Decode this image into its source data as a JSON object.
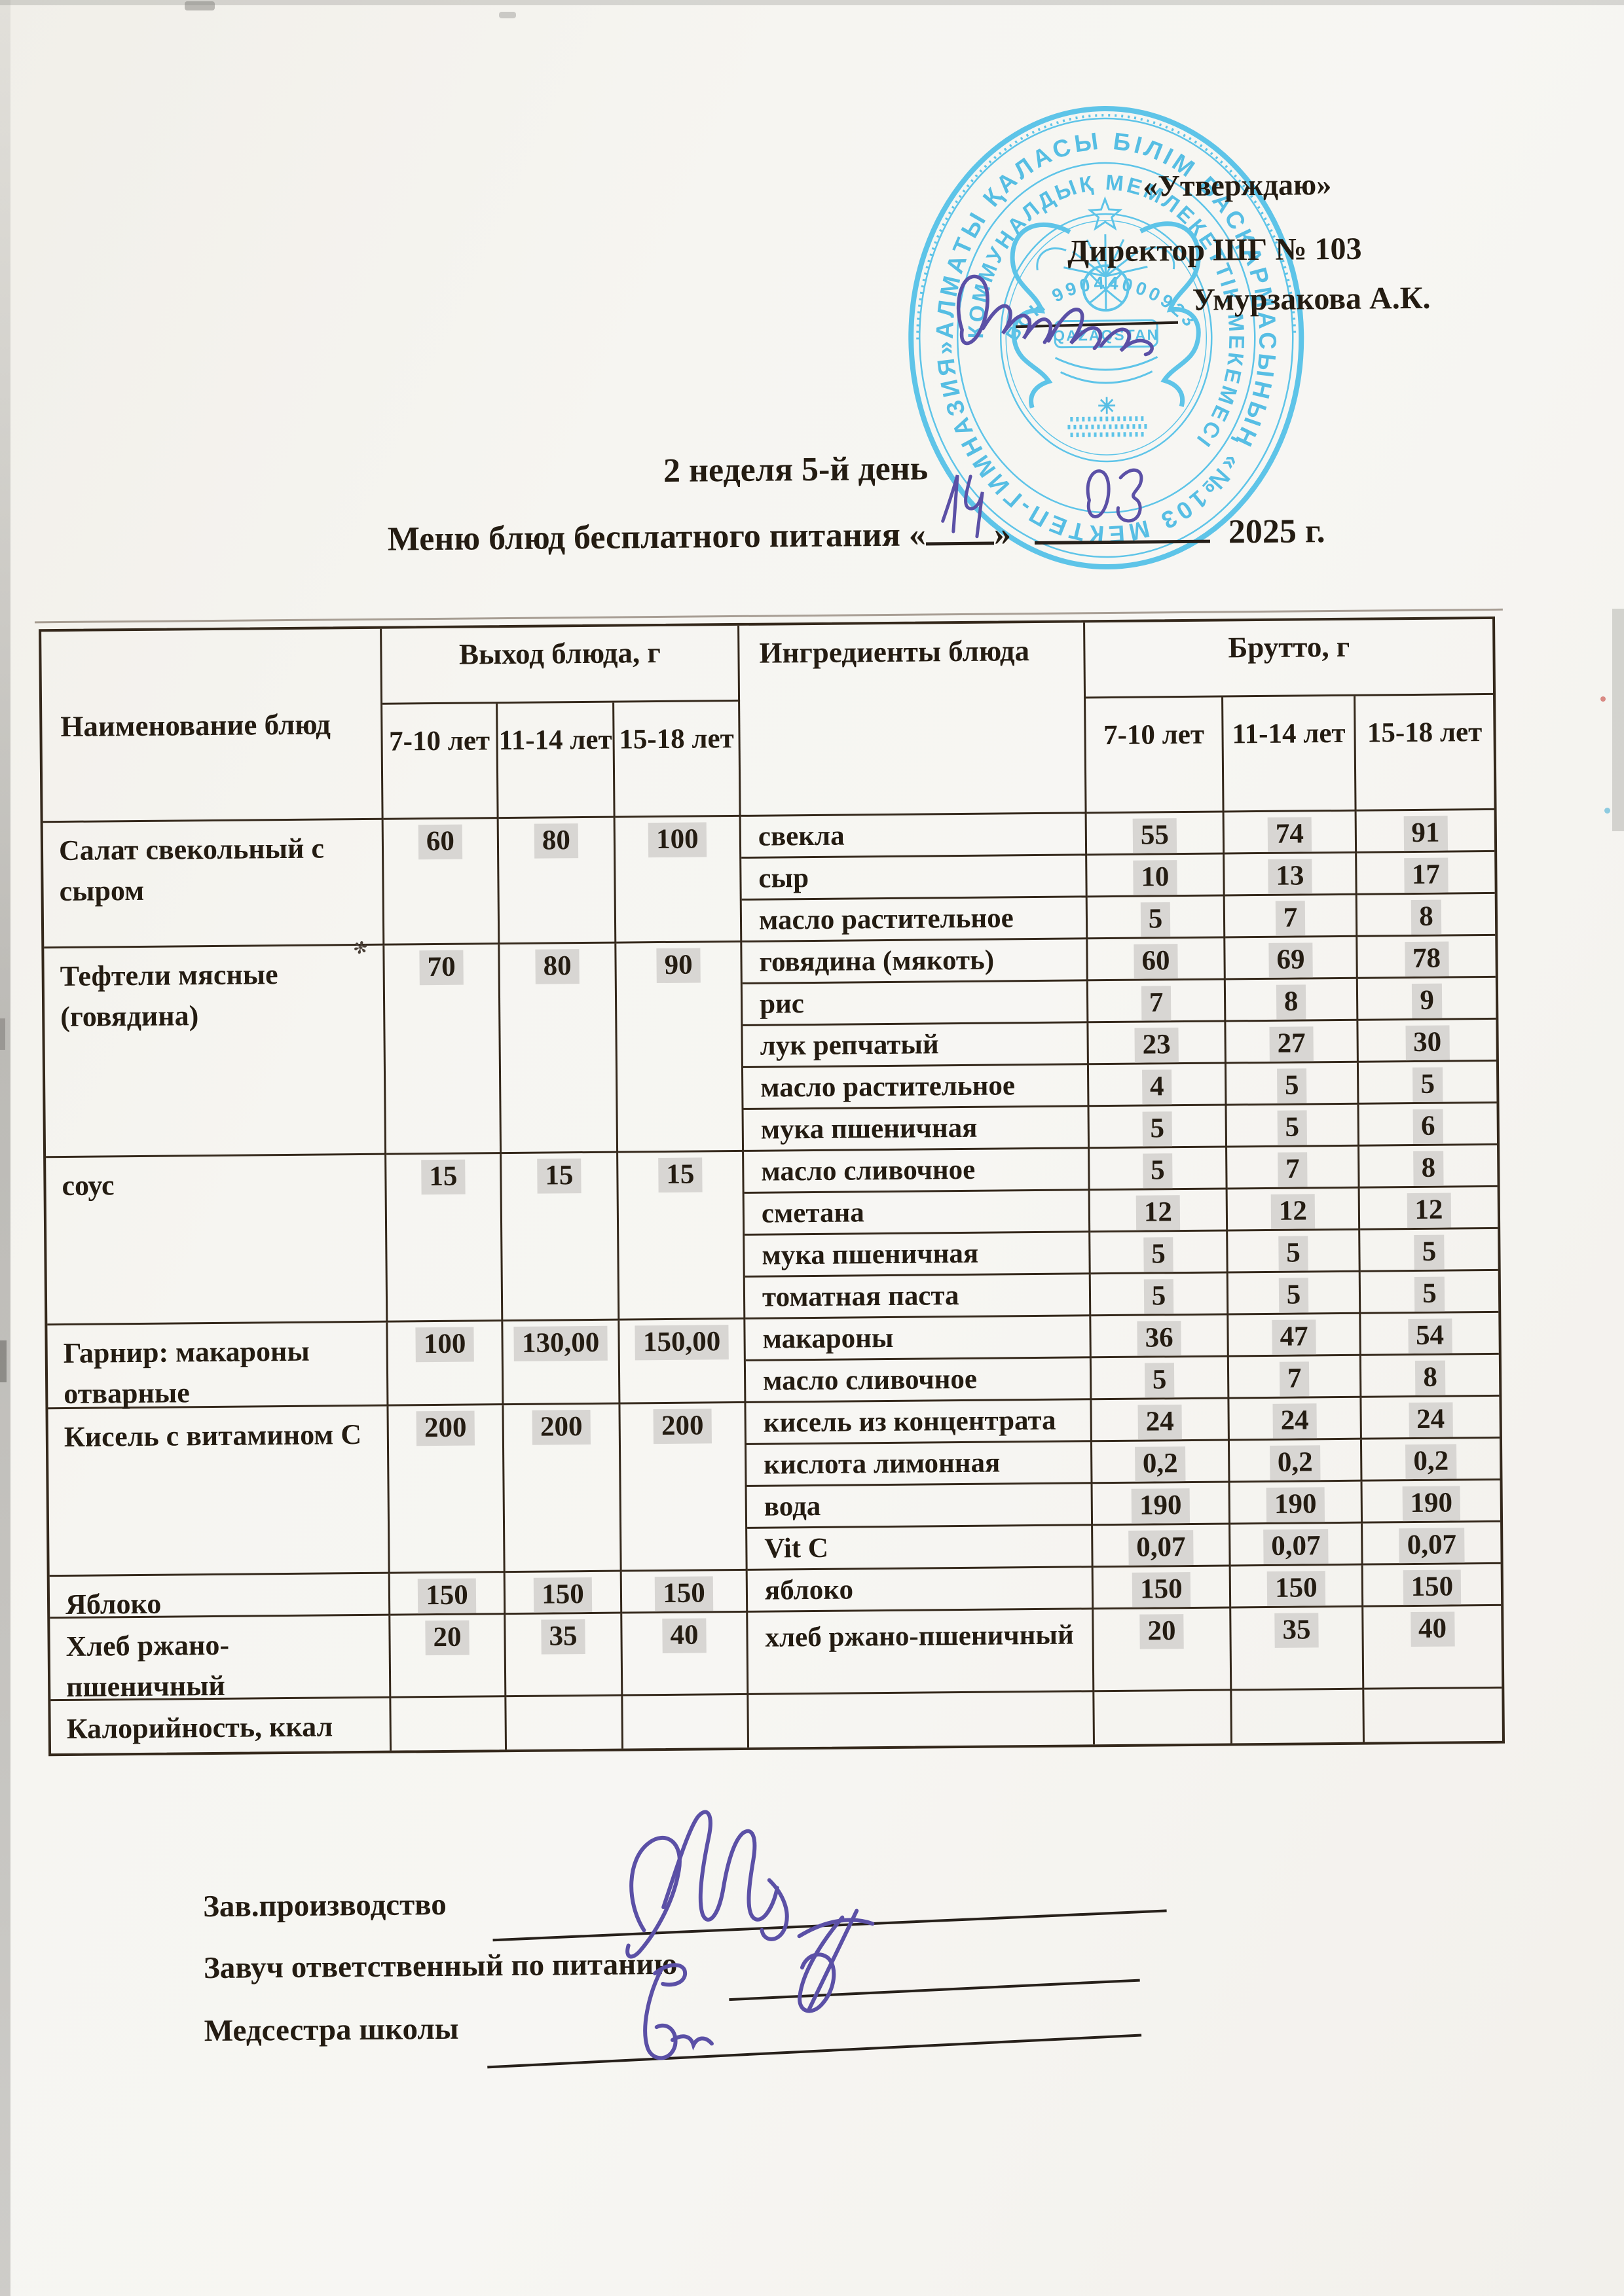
{
  "doc": {
    "approval": {
      "quote": "«Утверждаю»",
      "role_line": "Директор ШГ № 103",
      "name": "Умурзакова А.К."
    },
    "title": {
      "week_line": "2 неделя 5-й день",
      "menu_prefix": "Меню блюд бесплатного питания «",
      "day": "14",
      "quote_close": "»",
      "month": "03",
      "year_suffix": "2025 г."
    },
    "stamp": {
      "outer_ring": "АЛМАТЫ ҚАЛАСЫ БІЛІМ БАСҚАРМАСЫНЫҢ «№103 МЕКТЕП-ГИМНАЗИЯ»",
      "inner_ring": "КОММУНАЛДЫҚ МЕМЛЕКЕТТІК МЕКЕМЕСІ",
      "bin_line": "БСН 990440009230",
      "banner": "QAZAQSTAN",
      "bottom_mark": "✳"
    },
    "table": {
      "headers": {
        "dish": "Наименование блюд",
        "yield_group": "Выход блюда, г",
        "ingredients": "Ингредиенты блюда",
        "brutto_group": "Брутто, г"
      },
      "age_cols": [
        "7-10 лет",
        "11-14 лет",
        "15-18 лет"
      ],
      "groups": [
        {
          "dish": "Салат свекольный с сыром",
          "yield": [
            "60",
            "80",
            "100"
          ],
          "rows": [
            {
              "ingredient": "свекла",
              "brutto": [
                "55",
                "74",
                "91"
              ]
            },
            {
              "ingredient": "сыр",
              "brutto": [
                "10",
                "13",
                "17"
              ]
            },
            {
              "ingredient": "масло растительное",
              "brutto": [
                "5",
                "7",
                "8"
              ]
            }
          ]
        },
        {
          "dish": "Тефтели мясные (говядина)",
          "yield": [
            "70",
            "80",
            "90"
          ],
          "rows": [
            {
              "ingredient": "говядина (мякоть)",
              "brutto": [
                "60",
                "69",
                "78"
              ]
            },
            {
              "ingredient": "рис",
              "brutto": [
                "7",
                "8",
                "9"
              ]
            },
            {
              "ingredient": "лук репчатый",
              "brutto": [
                "23",
                "27",
                "30"
              ]
            },
            {
              "ingredient": "масло растительное",
              "brutto": [
                "4",
                "5",
                "5"
              ]
            },
            {
              "ingredient": "мука пшеничная",
              "brutto": [
                "5",
                "5",
                "6"
              ]
            }
          ]
        },
        {
          "dish": "соус",
          "yield": [
            "15",
            "15",
            "15"
          ],
          "rows": [
            {
              "ingredient": "масло сливочное",
              "brutto": [
                "5",
                "7",
                "8"
              ]
            },
            {
              "ingredient": "сметана",
              "brutto": [
                "12",
                "12",
                "12"
              ]
            },
            {
              "ingredient": "мука пшеничная",
              "brutto": [
                "5",
                "5",
                "5"
              ]
            },
            {
              "ingredient": "томатная паста",
              "brutto": [
                "5",
                "5",
                "5"
              ]
            }
          ]
        },
        {
          "dish": "Гарнир: макароны отварные",
          "yield": [
            "100",
            "130,00",
            "150,00"
          ],
          "rows": [
            {
              "ingredient": "макароны",
              "brutto": [
                "36",
                "47",
                "54"
              ]
            },
            {
              "ingredient": "масло сливочное",
              "brutto": [
                "5",
                "7",
                "8"
              ]
            }
          ]
        },
        {
          "dish": "Кисель с витамином С",
          "yield": [
            "200",
            "200",
            "200"
          ],
          "rows": [
            {
              "ingredient": "кисель из концентрата",
              "brutto": [
                "24",
                "24",
                "24"
              ]
            },
            {
              "ingredient": "кислота лимонная",
              "brutto": [
                "0,2",
                "0,2",
                "0,2"
              ]
            },
            {
              "ingredient": "вода",
              "brutto": [
                "190",
                "190",
                "190"
              ]
            },
            {
              "ingredient": "Vit C",
              "brutto": [
                "0,07",
                "0,07",
                "0,07"
              ]
            }
          ]
        },
        {
          "dish": "Яблоко",
          "yield": [
            "150",
            "150",
            "150"
          ],
          "rows": [
            {
              "ingredient": "яблоко",
              "brutto": [
                "150",
                "150",
                "150"
              ]
            }
          ]
        },
        {
          "dish": "Хлеб ржано-пшеничный",
          "yield": [
            "20",
            "35",
            "40"
          ],
          "rows": [
            {
              "ingredient": "хлеб ржано-пшеничный",
              "brutto": [
                "20",
                "35",
                "40"
              ]
            }
          ]
        },
        {
          "dish": "Калорийность, ккал",
          "yield": [
            "",
            "",
            ""
          ],
          "rows": [
            {
              "ingredient": "",
              "brutto": [
                "",
                "",
                ""
              ]
            }
          ]
        }
      ]
    },
    "signatures": [
      {
        "label": "Зав.производство"
      },
      {
        "label": "Завуч ответственный по питанию"
      },
      {
        "label": "Медсестра школы"
      }
    ],
    "colors": {
      "stamp_blue": "#49bee7",
      "ink_purple": "#5b50a6",
      "table_line": "#34281b",
      "number_chip": "#d8d6d3"
    }
  }
}
